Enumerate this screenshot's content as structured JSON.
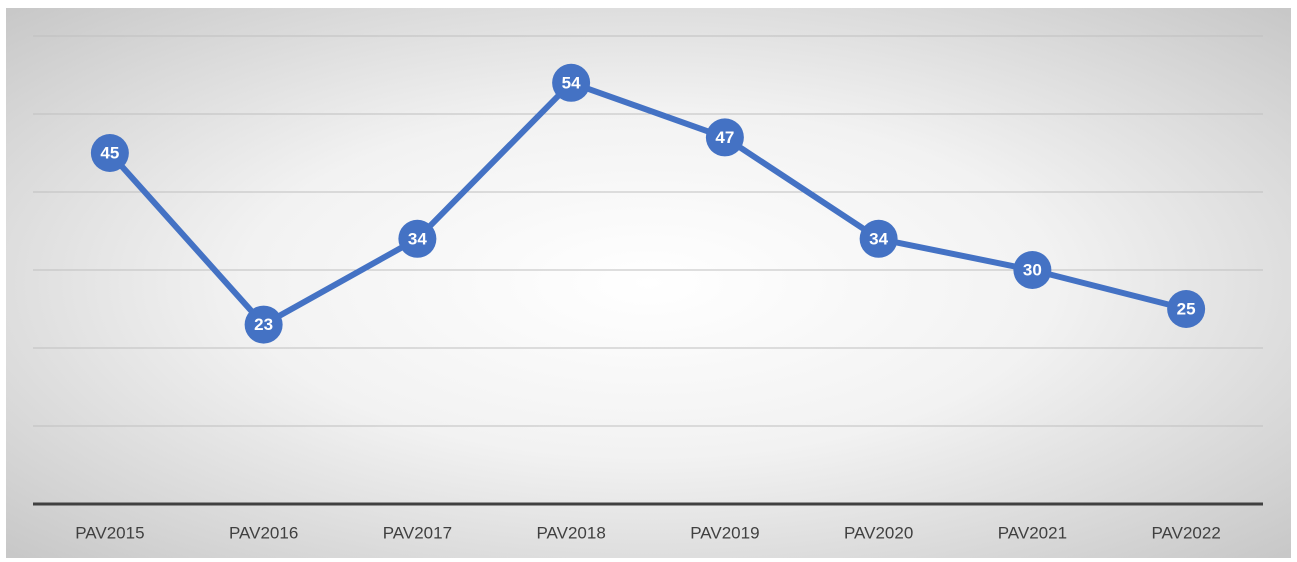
{
  "chart_data": {
    "type": "line",
    "categories": [
      "PAV2015",
      "PAV2016",
      "PAV2017",
      "PAV2018",
      "PAV2019",
      "PAV2020",
      "PAV2021",
      "PAV2022"
    ],
    "values": [
      45,
      23,
      34,
      54,
      47,
      34,
      30,
      25
    ],
    "color": "#4472c4",
    "ylim": [
      0,
      60
    ],
    "yticks": [
      0,
      10,
      20,
      30,
      40,
      50,
      60
    ],
    "grid": true
  }
}
